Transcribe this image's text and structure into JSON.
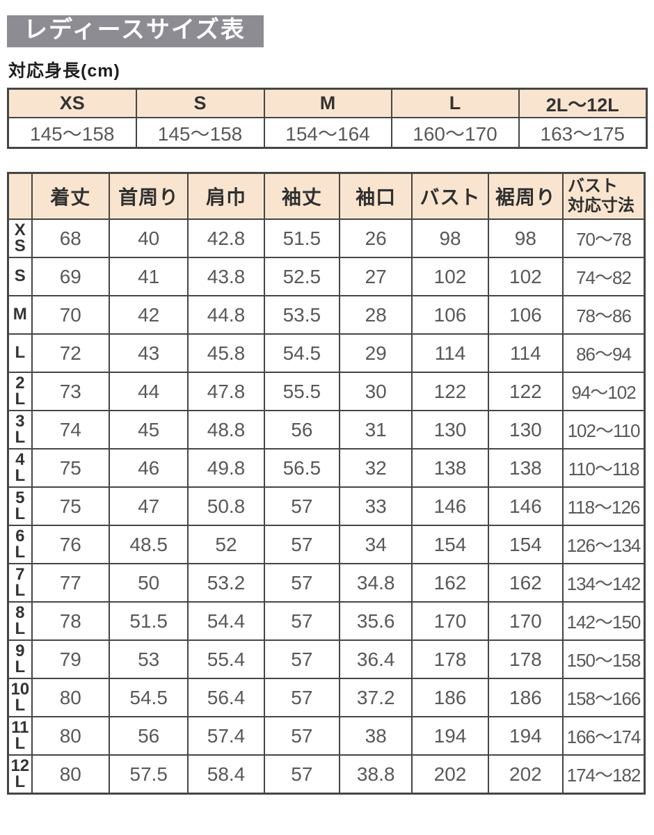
{
  "title": "レディースサイズ表",
  "colors": {
    "title_bg": "#8c8c92",
    "header_bg": "#f9e5cf",
    "border": "#454545",
    "number_text": "#58585a"
  },
  "height_section": {
    "label": "対応身長(cm)",
    "sizes": [
      "XS",
      "S",
      "M",
      "L",
      "2L～12L"
    ],
    "ranges": [
      "145～158",
      "145～158",
      "154～164",
      "160～170",
      "163～175"
    ]
  },
  "size_table": {
    "corner_header": "",
    "columns": [
      "着丈",
      "首周り",
      "肩巾",
      "袖丈",
      "袖口",
      "バスト",
      "裾周り"
    ],
    "bust_range_header": "バスト\n対応寸法",
    "rows": [
      {
        "size": "XS",
        "values": [
          "68",
          "40",
          "42.8",
          "51.5",
          "26",
          "98",
          "98"
        ],
        "bust_range": "70～78"
      },
      {
        "size": "S",
        "values": [
          "69",
          "41",
          "43.8",
          "52.5",
          "27",
          "102",
          "102"
        ],
        "bust_range": "74～82"
      },
      {
        "size": "M",
        "values": [
          "70",
          "42",
          "44.8",
          "53.5",
          "28",
          "106",
          "106"
        ],
        "bust_range": "78～86"
      },
      {
        "size": "L",
        "values": [
          "72",
          "43",
          "45.8",
          "54.5",
          "29",
          "114",
          "114"
        ],
        "bust_range": "86～94"
      },
      {
        "size": "2L",
        "values": [
          "73",
          "44",
          "47.8",
          "55.5",
          "30",
          "122",
          "122"
        ],
        "bust_range": "94～102"
      },
      {
        "size": "3L",
        "values": [
          "74",
          "45",
          "48.8",
          "56",
          "31",
          "130",
          "130"
        ],
        "bust_range": "102～110"
      },
      {
        "size": "4L",
        "values": [
          "75",
          "46",
          "49.8",
          "56.5",
          "32",
          "138",
          "138"
        ],
        "bust_range": "110～118"
      },
      {
        "size": "5L",
        "values": [
          "75",
          "47",
          "50.8",
          "57",
          "33",
          "146",
          "146"
        ],
        "bust_range": "118～126"
      },
      {
        "size": "6L",
        "values": [
          "76",
          "48.5",
          "52",
          "57",
          "34",
          "154",
          "154"
        ],
        "bust_range": "126～134"
      },
      {
        "size": "7L",
        "values": [
          "77",
          "50",
          "53.2",
          "57",
          "34.8",
          "162",
          "162"
        ],
        "bust_range": "134～142"
      },
      {
        "size": "8L",
        "values": [
          "78",
          "51.5",
          "54.4",
          "57",
          "35.6",
          "170",
          "170"
        ],
        "bust_range": "142～150"
      },
      {
        "size": "9L",
        "values": [
          "79",
          "53",
          "55.4",
          "57",
          "36.4",
          "178",
          "178"
        ],
        "bust_range": "150～158"
      },
      {
        "size": "10L",
        "values": [
          "80",
          "54.5",
          "56.4",
          "57",
          "37.2",
          "186",
          "186"
        ],
        "bust_range": "158～166"
      },
      {
        "size": "11L",
        "values": [
          "80",
          "56",
          "57.4",
          "57",
          "38",
          "194",
          "194"
        ],
        "bust_range": "166～174"
      },
      {
        "size": "12L",
        "values": [
          "80",
          "57.5",
          "58.4",
          "57",
          "38.8",
          "202",
          "202"
        ],
        "bust_range": "174～182"
      }
    ]
  }
}
